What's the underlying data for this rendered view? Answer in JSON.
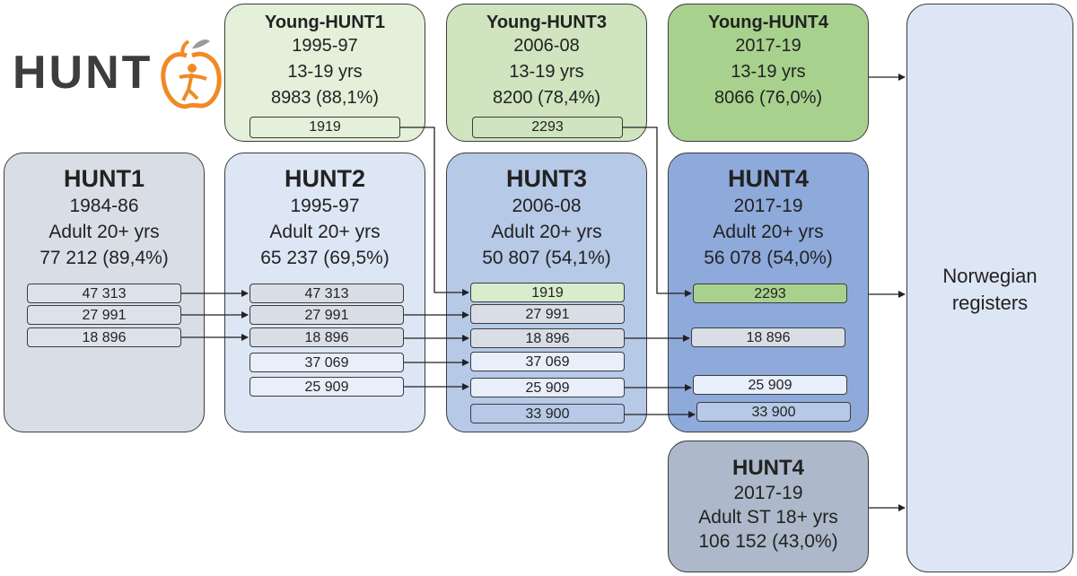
{
  "logo": {
    "text": "HUNT",
    "accent": "#f08a24"
  },
  "colors": {
    "hunt1_bg": "#d9dee6",
    "hunt2_bg": "#dde6f5",
    "hunt3_bg": "#b6c9e6",
    "hunt4_bg": "#8eaadb",
    "young1_bg": "#e4f0da",
    "young3_bg": "#cfe4bf",
    "young4_bg": "#a9d18e",
    "st_bg": "#adb9ca",
    "registers_bg": "#dde6f5",
    "green_cohort": "#d9eccb"
  },
  "young_hunt1": {
    "title": "Young-HUNT1",
    "period": "1995-97",
    "age": "13-19 yrs",
    "n": "8983 (88,1%)",
    "cohort": "1919"
  },
  "young_hunt3": {
    "title": "Young-HUNT3",
    "period": "2006-08",
    "age": "13-19 yrs",
    "n": "8200 (78,4%)",
    "cohort": "2293"
  },
  "young_hunt4": {
    "title": "Young-HUNT4",
    "period": "2017-19",
    "age": "13-19 yrs",
    "n": "8066 (76,0%)"
  },
  "hunt1": {
    "title": "HUNT1",
    "period": "1984-86",
    "age": "Adult  20+ yrs",
    "n": "77 212 (89,4%)",
    "cohorts": [
      "47 313",
      "27 991",
      "18 896"
    ]
  },
  "hunt2": {
    "title": "HUNT2",
    "period": "1995-97",
    "age": "Adult  20+ yrs",
    "n": "65 237 (69,5%)",
    "cohorts": [
      "47 313",
      "27 991",
      "18 896",
      "37 069",
      "25 909"
    ]
  },
  "hunt3": {
    "title": "HUNT3",
    "period": "2006-08",
    "age": "Adult  20+ yrs",
    "n": "50 807 (54,1%)",
    "cohorts": [
      "1919",
      "27 991",
      "18 896",
      "37 069",
      "25 909",
      "33 900"
    ]
  },
  "hunt4": {
    "title": "HUNT4",
    "period": "2017-19",
    "age": "Adult  20+ yrs",
    "n": "56 078 (54,0%)",
    "cohorts": [
      "2293",
      "18 896",
      "25 909",
      "33 900"
    ]
  },
  "hunt4_st": {
    "title": "HUNT4",
    "period": "2017-19",
    "age": "Adult ST 18+ yrs",
    "n": "106 152 (43,0%)"
  },
  "registers": {
    "label_line1": "Norwegian",
    "label_line2": "registers"
  }
}
